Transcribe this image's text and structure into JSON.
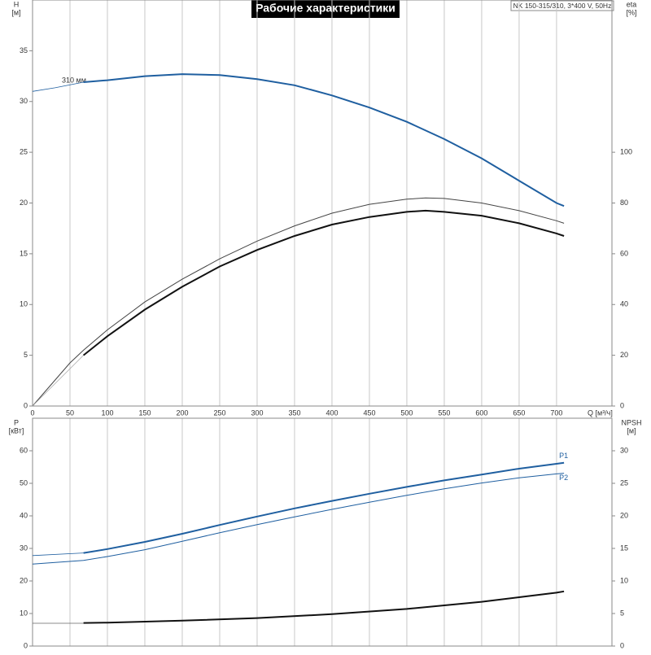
{
  "title": "Рабочие характеристики",
  "model": "NK 150-315/310, 3*400 V, 50Hz",
  "chart_data": [
    {
      "type": "line",
      "ylabel": "H",
      "yunit": "[м]",
      "y2label": "eta",
      "y2unit": "[%]",
      "xlabel": "Q [м³/ч]",
      "annotations": [
        "310 мм"
      ],
      "xlim": [
        0,
        774
      ],
      "ylim": [
        0,
        40
      ],
      "y2lim": [
        0,
        160
      ],
      "xticks": [
        0,
        50,
        100,
        150,
        200,
        250,
        300,
        350,
        400,
        450,
        500,
        550,
        600,
        650,
        700
      ],
      "yticks": [
        0,
        5,
        10,
        15,
        20,
        25,
        30,
        35
      ],
      "y2ticks": [
        0,
        20,
        40,
        60,
        80,
        100
      ],
      "show_xtick_labels": true,
      "grid": "x",
      "series": [
        {
          "color": "#1f5fa0",
          "width": 0.8,
          "x": [
            0,
            30,
            68
          ],
          "values": [
            31,
            31.35,
            31.9
          ]
        },
        {
          "color": "#1f5fa0",
          "width": 2,
          "x": [
            68,
            100,
            150,
            200,
            250,
            300,
            350,
            400,
            450,
            500,
            550,
            600,
            650,
            700,
            710
          ],
          "values": [
            31.9,
            32.1,
            32.5,
            32.7,
            32.6,
            32.2,
            31.6,
            30.6,
            29.4,
            28.0,
            26.3,
            24.4,
            22.2,
            20.0,
            19.7
          ]
        },
        {
          "color": "#444444",
          "width": 1,
          "axis": "y2",
          "x": [
            0,
            50,
            68,
            100,
            150,
            200,
            250,
            300,
            350,
            400,
            450,
            500,
            525,
            550,
            600,
            650,
            700,
            710
          ],
          "values": [
            0,
            17,
            22,
            30,
            41,
            50,
            58,
            65,
            71,
            76,
            79.5,
            81.5,
            82,
            81.8,
            80,
            77,
            73,
            72
          ]
        },
        {
          "color": "#aaaaaa",
          "width": 0.8,
          "axis": "y2",
          "x": [
            0,
            68
          ],
          "values": [
            0,
            20
          ]
        },
        {
          "color": "#111111",
          "width": 2,
          "axis": "y2",
          "x": [
            68,
            100,
            150,
            200,
            250,
            300,
            350,
            400,
            450,
            500,
            525,
            550,
            600,
            650,
            700,
            710
          ],
          "values": [
            20,
            27.5,
            38,
            47,
            55,
            61.5,
            67,
            71.5,
            74.5,
            76.5,
            77,
            76.5,
            75,
            72,
            68,
            67
          ]
        }
      ]
    },
    {
      "type": "line",
      "ylabel": "P",
      "yunit": "[кВт]",
      "y2label": "NPSH",
      "y2unit": "[м]",
      "xlim": [
        0,
        774
      ],
      "ylim": [
        0,
        70
      ],
      "y2lim": [
        0,
        35
      ],
      "xticks": [
        0,
        50,
        100,
        150,
        200,
        250,
        300,
        350,
        400,
        450,
        500,
        550,
        600,
        650,
        700
      ],
      "yticks": [
        0,
        10,
        20,
        30,
        40,
        50,
        60
      ],
      "y2ticks": [
        0,
        5,
        10,
        15,
        20,
        25,
        30
      ],
      "show_xtick_labels": false,
      "grid": "x",
      "series": [
        {
          "color": "#1f5fa0",
          "width": 0.8,
          "x": [
            0,
            68
          ],
          "values": [
            27.8,
            28.6
          ]
        },
        {
          "name": "P1",
          "color": "#1f5fa0",
          "width": 2,
          "x": [
            68,
            100,
            150,
            200,
            250,
            300,
            350,
            400,
            450,
            500,
            550,
            600,
            650,
            700,
            710
          ],
          "values": [
            28.6,
            29.8,
            32,
            34.5,
            37.2,
            39.8,
            42.3,
            44.6,
            46.8,
            48.9,
            50.9,
            52.7,
            54.5,
            56,
            56.3
          ]
        },
        {
          "name": "P2",
          "color": "#1f5fa0",
          "width": 1,
          "x": [
            0,
            68,
            100,
            150,
            200,
            250,
            300,
            350,
            400,
            450,
            500,
            550,
            600,
            650,
            700,
            710
          ],
          "values": [
            25.2,
            26.3,
            27.5,
            29.6,
            32.2,
            34.8,
            37.3,
            39.7,
            42,
            44.2,
            46.3,
            48.3,
            50.1,
            51.7,
            52.9,
            53.1
          ]
        },
        {
          "color": "#666666",
          "width": 0.8,
          "axis": "y2",
          "x": [
            0,
            68
          ],
          "values": [
            3.5,
            3.5
          ]
        },
        {
          "color": "#111111",
          "width": 2,
          "axis": "y2",
          "x": [
            68,
            100,
            200,
            300,
            400,
            500,
            600,
            650,
            700,
            710
          ],
          "values": [
            3.55,
            3.6,
            3.9,
            4.3,
            4.9,
            5.7,
            6.8,
            7.5,
            8.2,
            8.4
          ]
        }
      ]
    }
  ]
}
